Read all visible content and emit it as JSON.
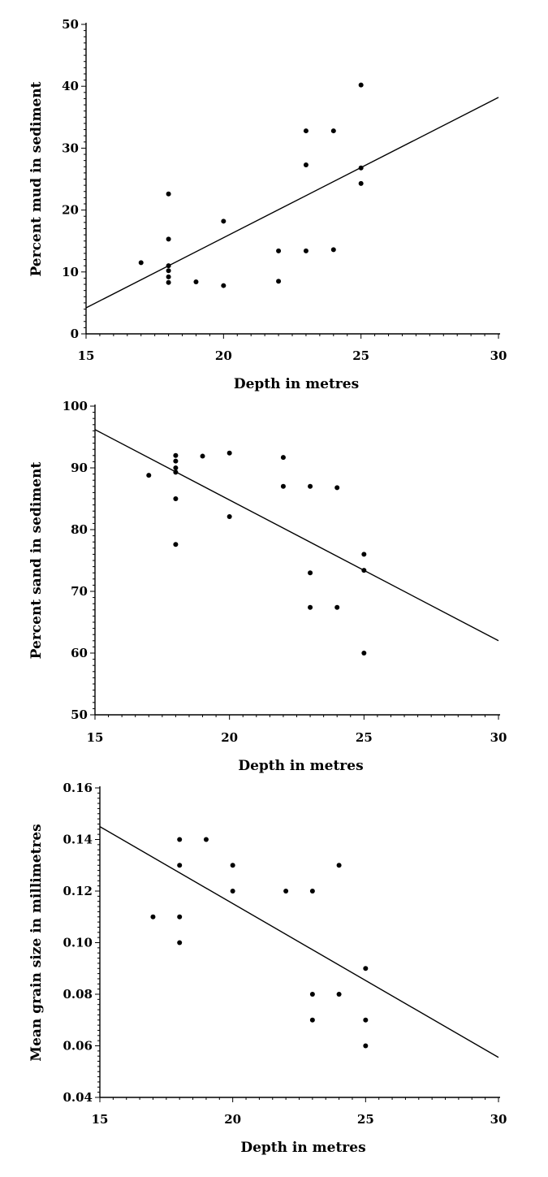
{
  "chart_data": [
    {
      "type": "scatter",
      "title": "",
      "xlabel": "Depth in metres",
      "ylabel": "Percent mud in sediment",
      "xlim": [
        15,
        30
      ],
      "ylim": [
        0,
        50
      ],
      "x_ticks": [
        15,
        20,
        25,
        30
      ],
      "y_ticks": [
        0,
        10,
        20,
        30,
        40,
        50
      ],
      "x_tick_labels": [
        "15",
        "20",
        "25",
        "30"
      ],
      "y_tick_labels": [
        "0",
        "10",
        "20",
        "30",
        "40",
        "50"
      ],
      "points": [
        [
          17,
          11.5
        ],
        [
          18,
          22.6
        ],
        [
          18,
          15.3
        ],
        [
          18,
          11.0
        ],
        [
          18,
          10.2
        ],
        [
          18,
          9.2
        ],
        [
          18,
          8.3
        ],
        [
          19,
          8.4
        ],
        [
          20,
          18.2
        ],
        [
          20,
          7.8
        ],
        [
          22,
          13.4
        ],
        [
          22,
          8.5
        ],
        [
          23,
          32.8
        ],
        [
          23,
          27.3
        ],
        [
          23,
          13.4
        ],
        [
          24,
          32.8
        ],
        [
          24,
          13.6
        ],
        [
          25,
          40.2
        ],
        [
          25,
          26.8
        ],
        [
          25,
          24.3
        ]
      ],
      "fit_line": {
        "x": [
          15,
          30
        ],
        "y": [
          4.2,
          38.2
        ]
      }
    },
    {
      "type": "scatter",
      "title": "",
      "xlabel": "Depth in metres",
      "ylabel": "Percent sand in sediment",
      "xlim": [
        15,
        30
      ],
      "ylim": [
        50,
        100
      ],
      "x_ticks": [
        15,
        20,
        25,
        30
      ],
      "y_ticks": [
        50,
        60,
        70,
        80,
        90,
        100
      ],
      "x_tick_labels": [
        "15",
        "20",
        "25",
        "30"
      ],
      "y_tick_labels": [
        "50",
        "60",
        "70",
        "80",
        "90",
        "100"
      ],
      "points": [
        [
          17,
          88.8
        ],
        [
          18,
          92.0
        ],
        [
          18,
          91.1
        ],
        [
          18,
          90.0
        ],
        [
          18,
          89.3
        ],
        [
          18,
          85.0
        ],
        [
          18,
          77.6
        ],
        [
          19,
          91.9
        ],
        [
          20,
          92.4
        ],
        [
          20,
          82.1
        ],
        [
          22,
          91.7
        ],
        [
          22,
          87.0
        ],
        [
          23,
          87.0
        ],
        [
          23,
          73.0
        ],
        [
          23,
          67.4
        ],
        [
          24,
          86.8
        ],
        [
          24,
          67.4
        ],
        [
          25,
          76.0
        ],
        [
          25,
          73.4
        ],
        [
          25,
          60.0
        ]
      ],
      "fit_line": {
        "x": [
          15,
          30
        ],
        "y": [
          96.2,
          62.0
        ]
      }
    },
    {
      "type": "scatter",
      "title": "",
      "xlabel": "Depth in metres",
      "ylabel": "Mean grain size in millimetres",
      "xlim": [
        15,
        30
      ],
      "ylim": [
        0.04,
        0.16
      ],
      "x_ticks": [
        15,
        20,
        25,
        30
      ],
      "y_ticks": [
        0.04,
        0.06,
        0.08,
        0.1,
        0.12,
        0.14,
        0.16
      ],
      "x_tick_labels": [
        "15",
        "20",
        "25",
        "30"
      ],
      "y_tick_labels": [
        "0.04",
        "0.06",
        "0.08",
        "0.10",
        "0.12",
        "0.14",
        "0.16"
      ],
      "points": [
        [
          17,
          0.11
        ],
        [
          18,
          0.14
        ],
        [
          18,
          0.13
        ],
        [
          18,
          0.11
        ],
        [
          18,
          0.1
        ],
        [
          19,
          0.14
        ],
        [
          20,
          0.13
        ],
        [
          20,
          0.12
        ],
        [
          22,
          0.12
        ],
        [
          23,
          0.12
        ],
        [
          23,
          0.08
        ],
        [
          23,
          0.07
        ],
        [
          24,
          0.13
        ],
        [
          24,
          0.08
        ],
        [
          25,
          0.09
        ],
        [
          25,
          0.07
        ],
        [
          25,
          0.06
        ]
      ],
      "fit_line": {
        "x": [
          15,
          30
        ],
        "y": [
          0.145,
          0.0555
        ]
      }
    }
  ]
}
